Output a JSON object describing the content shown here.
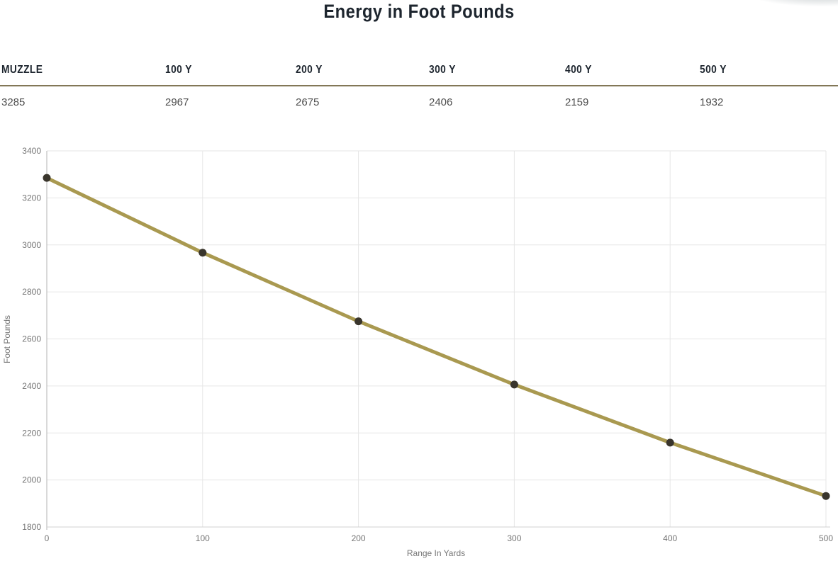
{
  "page": {
    "title": "Energy in Foot Pounds"
  },
  "table": {
    "headers": [
      "MUZZLE",
      "100 Y",
      "200 Y",
      "300 Y",
      "400 Y",
      "500 Y"
    ],
    "values": [
      "3285",
      "2967",
      "2675",
      "2406",
      "2159",
      "1932"
    ]
  },
  "chart_data": {
    "type": "line",
    "x": [
      0,
      100,
      200,
      300,
      400,
      500
    ],
    "series": [
      {
        "name": "Energy",
        "values": [
          3285,
          2967,
          2675,
          2406,
          2159,
          1932
        ]
      }
    ],
    "title": "Energy in Foot Pounds",
    "xlabel": "Range In Yards",
    "ylabel": "Foot Pounds",
    "xlim": [
      0,
      500
    ],
    "ylim": [
      1800,
      3400
    ],
    "x_ticks": [
      0,
      100,
      200,
      300,
      400,
      500
    ],
    "y_ticks": [
      1800,
      2000,
      2200,
      2400,
      2600,
      2800,
      3000,
      3200,
      3400
    ],
    "grid": true,
    "legend": "none",
    "line_color": "#a99950",
    "marker_color": "#39352c",
    "grid_color": "#e6e6e6",
    "axis_line_color": "#b3b3b3",
    "baseline_color": "#d0d0d0",
    "tick_label_color": "#757575"
  },
  "colors": {
    "title_text": "#1d252e",
    "table_rule": "#827757",
    "table_value_text": "#4d4d4d",
    "background": "#ffffff"
  }
}
